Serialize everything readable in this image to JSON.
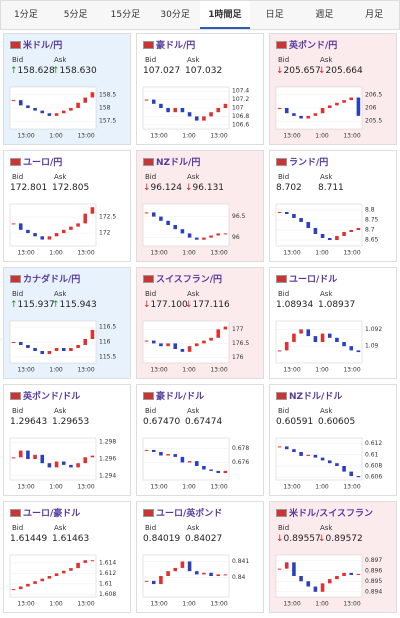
{
  "tabs": [
    "1分足",
    "5分足",
    "15分足",
    "30分足",
    "1時間足",
    "日足",
    "週足",
    "月足"
  ],
  "selected_tab": 4,
  "labels": {
    "bid": "Bid",
    "ask": "Ask"
  },
  "time_labels": [
    "13:00",
    "1:00",
    "13:00"
  ],
  "cards": [
    {
      "pair": "米ドル/円",
      "trend": "up",
      "arrow": "↑",
      "bid": "158.628",
      "ask": "158.630",
      "chart": {
        "ylim": [
          157.2,
          158.8
        ],
        "yticks": [
          158.5,
          158,
          157.5
        ],
        "closes": [
          158.3,
          158.1,
          158.0,
          157.9,
          157.8,
          157.7,
          157.8,
          157.9,
          158.0,
          158.2,
          158.4,
          158.6
        ]
      }
    },
    {
      "pair": "豪ドル/円",
      "bid": "107.027",
      "ask": "107.032",
      "chart": {
        "ylim": [
          106.5,
          107.5
        ],
        "yticks": [
          107.4,
          107.2,
          107,
          106.8,
          106.6
        ],
        "closes": [
          107.2,
          107.1,
          107.0,
          106.9,
          107.0,
          106.9,
          106.8,
          106.7,
          106.8,
          106.9,
          107.0,
          107.1
        ]
      }
    },
    {
      "pair": "英ポンド/円",
      "trend": "down",
      "arrow": "↓",
      "bid": "205.657",
      "ask": "205.664",
      "chart": {
        "ylim": [
          205.2,
          206.8
        ],
        "yticks": [
          206.5,
          206,
          205.5
        ],
        "closes": [
          206.0,
          205.8,
          205.7,
          205.6,
          205.7,
          205.8,
          206.0,
          206.1,
          206.2,
          206.3,
          206.4,
          205.7
        ]
      }
    },
    {
      "pair": "ユーロ/円",
      "bid": "172.801",
      "ask": "172.805",
      "chart": {
        "ylim": [
          171.6,
          172.9
        ],
        "yticks": [
          172.5,
          172
        ],
        "closes": [
          172.3,
          172.1,
          172.0,
          171.9,
          171.8,
          171.9,
          172.0,
          172.1,
          172.2,
          172.3,
          172.6,
          172.8
        ]
      }
    },
    {
      "pair": "NZドル/円",
      "trend": "down",
      "arrow": "↓",
      "bid": "96.124",
      "ask": "96.131",
      "chart": {
        "ylim": [
          95.8,
          96.8
        ],
        "yticks": [
          96.5,
          96
        ],
        "closes": [
          96.6,
          96.5,
          96.4,
          96.3,
          96.2,
          96.1,
          96.0,
          95.95,
          96.0,
          96.05,
          96.1,
          96.1
        ]
      }
    },
    {
      "pair": "ランド/円",
      "bid": "8.702",
      "ask": "8.711",
      "chart": {
        "ylim": [
          8.62,
          8.83
        ],
        "yticks": [
          8.8,
          8.75,
          8.7,
          8.65
        ],
        "closes": [
          8.79,
          8.78,
          8.76,
          8.74,
          8.71,
          8.68,
          8.66,
          8.65,
          8.67,
          8.69,
          8.7,
          8.71
        ]
      }
    },
    {
      "pair": "カナダドル/円",
      "trend": "up",
      "arrow": "↑",
      "bid": "115.937",
      "ask": "115.943",
      "chart": {
        "ylim": [
          115.3,
          116.7
        ],
        "yticks": [
          116.5,
          116,
          115.5
        ],
        "closes": [
          116.0,
          115.9,
          115.8,
          115.7,
          115.6,
          115.7,
          115.8,
          115.7,
          115.8,
          115.9,
          116.1,
          116.4
        ]
      }
    },
    {
      "pair": "スイスフラン/円",
      "trend": "down",
      "arrow": "↓",
      "bid": "177.100",
      "ask": "177.116",
      "chart": {
        "ylim": [
          175.8,
          177.3
        ],
        "yticks": [
          177,
          176.5,
          176
        ],
        "closes": [
          176.6,
          176.5,
          176.4,
          176.5,
          176.3,
          176.2,
          176.4,
          176.5,
          176.6,
          176.7,
          177.0,
          177.1
        ]
      }
    },
    {
      "pair": "ユーロ/ドル",
      "bid": "1.08934",
      "ask": "1.08937",
      "chart": {
        "ylim": [
          1.088,
          1.093
        ],
        "yticks": [
          1.092,
          1.09
        ],
        "closes": [
          1.0895,
          1.0905,
          1.0915,
          1.092,
          1.0912,
          1.0905,
          1.0915,
          1.091,
          1.0905,
          1.09,
          1.0895,
          1.0893
        ]
      }
    },
    {
      "pair": "英ポンド/ドル",
      "bid": "1.29643",
      "ask": "1.29653",
      "chart": {
        "ylim": [
          1.2935,
          1.2985
        ],
        "yticks": [
          1.298,
          1.296,
          1.294
        ],
        "closes": [
          1.2962,
          1.297,
          1.296,
          1.2965,
          1.2955,
          1.295,
          1.2957,
          1.2953,
          1.295,
          1.2955,
          1.2962,
          1.2964
        ]
      }
    },
    {
      "pair": "豪ドル/ドル",
      "bid": "0.67470",
      "ask": "0.67474",
      "chart": {
        "ylim": [
          0.6735,
          0.6795
        ],
        "yticks": [
          0.678,
          0.676
        ],
        "closes": [
          0.6778,
          0.6775,
          0.677,
          0.6772,
          0.6768,
          0.676,
          0.6762,
          0.6755,
          0.675,
          0.6748,
          0.6745,
          0.6748
        ]
      }
    },
    {
      "pair": "NZドル/ドル",
      "bid": "0.60591",
      "ask": "0.60605",
      "chart": {
        "ylim": [
          0.6055,
          0.613
        ],
        "yticks": [
          0.612,
          0.61,
          0.608,
          0.606
        ],
        "closes": [
          0.6115,
          0.611,
          0.6105,
          0.6098,
          0.61,
          0.6095,
          0.609,
          0.6085,
          0.608,
          0.607,
          0.6062,
          0.606
        ]
      }
    },
    {
      "pair": "ユーロ/豪ドル",
      "bid": "1.61449",
      "ask": "1.61463",
      "chart": {
        "ylim": [
          1.6075,
          1.6155
        ],
        "yticks": [
          1.614,
          1.612,
          1.61,
          1.608
        ],
        "closes": [
          1.609,
          1.6095,
          1.61,
          1.6105,
          1.611,
          1.6115,
          1.612,
          1.6125,
          1.613,
          1.614,
          1.6145,
          1.6145
        ]
      }
    },
    {
      "pair": "ユーロ/英ポンド",
      "bid": "0.84019",
      "ask": "0.84027",
      "chart": {
        "ylim": [
          0.8388,
          0.8414
        ],
        "yticks": [
          0.841,
          0.84
        ],
        "closes": [
          0.8398,
          0.8396,
          0.8401,
          0.8404,
          0.8406,
          0.841,
          0.8404,
          0.8402,
          0.8403,
          0.8401,
          0.8402,
          0.8402
        ]
      }
    },
    {
      "pair": "米ドル/スイスフラン",
      "trend": "down",
      "arrow": "↓",
      "bid": "0.89557",
      "ask": "0.89572",
      "chart": {
        "ylim": [
          0.8935,
          0.8975
        ],
        "yticks": [
          0.897,
          0.896,
          0.895,
          0.894
        ],
        "closes": [
          0.8962,
          0.8968,
          0.8955,
          0.895,
          0.8945,
          0.894,
          0.8948,
          0.8952,
          0.8955,
          0.8958,
          0.8956,
          0.8957
        ]
      }
    }
  ]
}
